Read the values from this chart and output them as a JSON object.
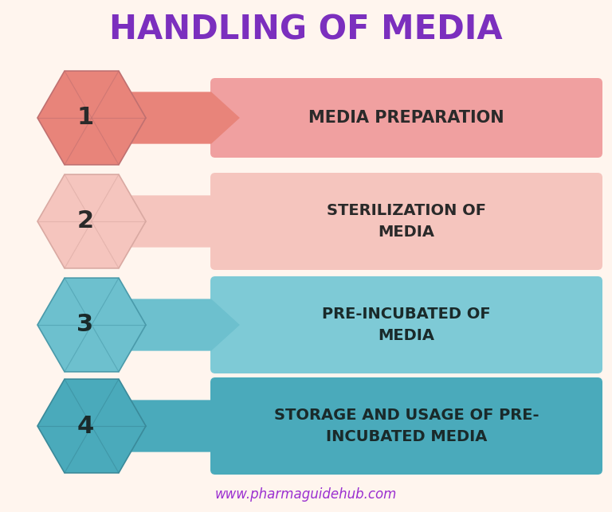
{
  "title": "HANDLING OF MEDIA",
  "title_color": "#7B2FBE",
  "title_fontsize": 30,
  "background_color": "#FFF5EE",
  "website": "www.pharmaguidehub.com",
  "website_color": "#9B30D0",
  "steps": [
    {
      "number": "1",
      "label": "MEDIA PREPARATION",
      "hex_color": "#E8847A",
      "hex_outline": "#C07070",
      "connector_color": "#E8847A",
      "box_color": "#F0A0A0",
      "text_color": "#2A2A2A",
      "num_color": "#2A2A2A"
    },
    {
      "number": "2",
      "label": "STERILIZATION OF\nMEDIA",
      "hex_color": "#F5C5BE",
      "hex_outline": "#D9A9A2",
      "connector_color": "#F5C5BE",
      "box_color": "#F5C5BE",
      "text_color": "#2A2A2A",
      "num_color": "#2A2A2A"
    },
    {
      "number": "3",
      "label": "PRE-INCUBATED OF\nMEDIA",
      "hex_color": "#6DC0CE",
      "hex_outline": "#4A9AAA",
      "connector_color": "#6DC0CE",
      "box_color": "#7ECAD6",
      "text_color": "#1A2A2A",
      "num_color": "#1A2A2A"
    },
    {
      "number": "4",
      "label": "STORAGE AND USAGE OF PRE-\nINCUBATED MEDIA",
      "hex_color": "#4AAABB",
      "hex_outline": "#3A8A9A",
      "connector_color": "#4AAABB",
      "box_color": "#4AAABB",
      "text_color": "#1A2A2A",
      "num_color": "#1A2A2A"
    }
  ]
}
